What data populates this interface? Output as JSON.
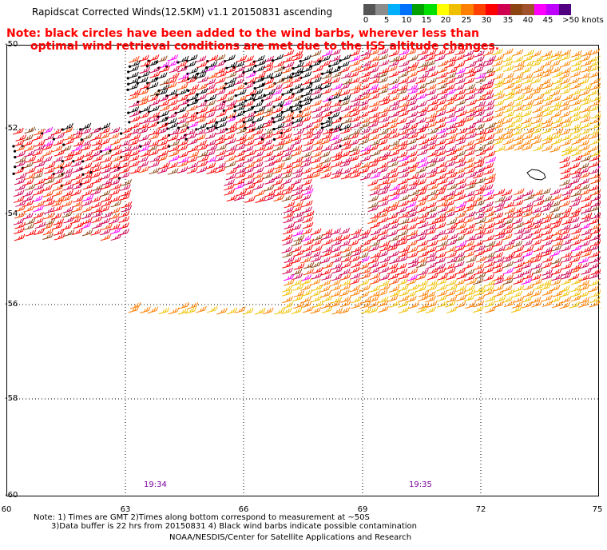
{
  "title": "Rapidscat Corrected Winds(12.5KM) v1.1 20150831 ascending",
  "note_line1": "Note: black circles have been added to the wind barbs, wherever less than",
  "note_line2": "optimal wind retrieval conditions are met due to the ISS altitude changes.",
  "colorbar": {
    "colors": [
      "#555555",
      "#8c8c8c",
      "#00b0ff",
      "#0070ff",
      "#00a000",
      "#00e000",
      "#ffff00",
      "#f0c000",
      "#ff8000",
      "#ff4000",
      "#ff0000",
      "#d00050",
      "#8b4513",
      "#a0522d",
      "#ff00ff",
      "#c000ff",
      "#500080"
    ],
    "labels": [
      "0",
      "5",
      "10",
      "15",
      "20",
      "25",
      "30",
      "35",
      "40",
      "45",
      ">50 knots"
    ]
  },
  "lat_labels": [
    "-50",
    "-52",
    "-54",
    "-56",
    "-58",
    "-60"
  ],
  "lon_labels": [
    "60",
    "63",
    "66",
    "69",
    "72",
    "75"
  ],
  "pass_times": [
    "19:34",
    "19:35"
  ],
  "footnote1": "Note: 1) Times are GMT 2)Times along bottom correspond to measurement at ~50S",
  "footnote2": "3)Data buffer is 22 hrs from 20150831 4) Black wind barbs indicate possible contamination",
  "credit": "NOAA/NESDIS/Center for Satellite Applications and Research"
}
